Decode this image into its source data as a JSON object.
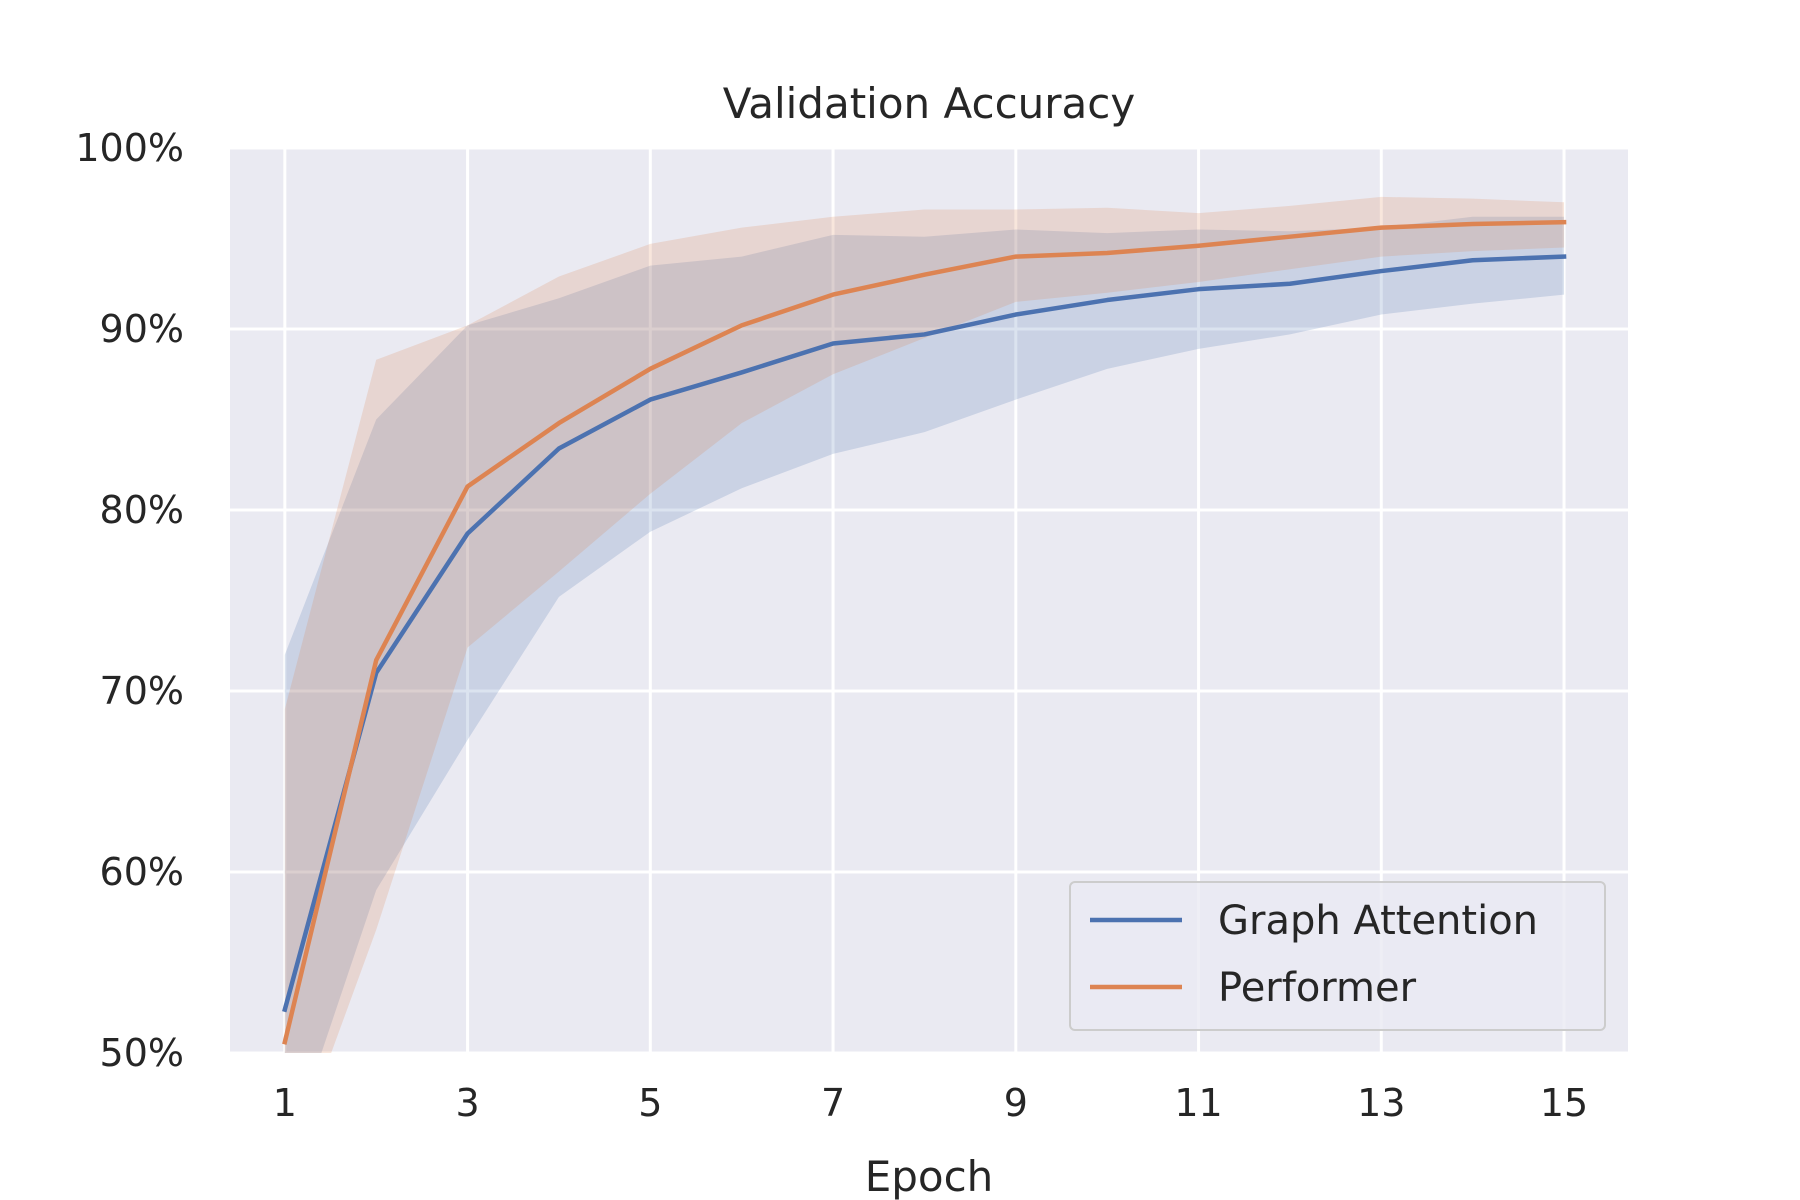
{
  "chart_data": {
    "type": "line",
    "title": "Validation Accuracy",
    "xlabel": "Epoch",
    "ylabel": "",
    "x": [
      1,
      2,
      3,
      4,
      5,
      6,
      7,
      8,
      9,
      10,
      11,
      12,
      13,
      14,
      15
    ],
    "xticks": [
      1,
      3,
      5,
      7,
      9,
      11,
      13,
      15
    ],
    "xtick_labels": [
      "1",
      "3",
      "5",
      "7",
      "9",
      "11",
      "13",
      "15"
    ],
    "xlim": [
      0.4,
      15.7
    ],
    "yticks": [
      50,
      60,
      70,
      80,
      90,
      100
    ],
    "ytick_labels": [
      "50%",
      "60%",
      "70%",
      "80%",
      "90%",
      "100%"
    ],
    "ylim": [
      50,
      100
    ],
    "grid": true,
    "legend_position": "lower-right",
    "series": [
      {
        "name": "Graph Attention",
        "color": "#4c72b0",
        "values": [
          52.4,
          71.0,
          78.7,
          83.4,
          86.1,
          87.6,
          89.2,
          89.7,
          90.8,
          91.6,
          92.2,
          92.5,
          93.2,
          93.8,
          94.0
        ],
        "lower": [
          44.0,
          59.0,
          67.3,
          75.2,
          78.8,
          81.2,
          83.1,
          84.3,
          86.1,
          87.8,
          88.9,
          89.7,
          90.8,
          91.4,
          91.9
        ],
        "upper": [
          72.0,
          85.0,
          90.2,
          91.7,
          93.5,
          94.0,
          95.2,
          95.1,
          95.5,
          95.3,
          95.5,
          95.4,
          95.6,
          96.2,
          96.2
        ]
      },
      {
        "name": "Performer",
        "color": "#dd8452",
        "values": [
          50.6,
          71.7,
          81.3,
          84.8,
          87.8,
          90.2,
          91.9,
          93.0,
          94.0,
          94.2,
          94.6,
          95.1,
          95.6,
          95.8,
          95.9
        ],
        "lower": [
          43.0,
          56.8,
          72.4,
          76.6,
          80.9,
          84.8,
          87.5,
          89.5,
          91.5,
          92.0,
          92.6,
          93.3,
          94.0,
          94.3,
          94.5
        ],
        "upper": [
          69.0,
          88.3,
          90.2,
          92.9,
          94.7,
          95.6,
          96.2,
          96.6,
          96.6,
          96.7,
          96.4,
          96.8,
          97.3,
          97.2,
          97.0
        ]
      }
    ]
  }
}
